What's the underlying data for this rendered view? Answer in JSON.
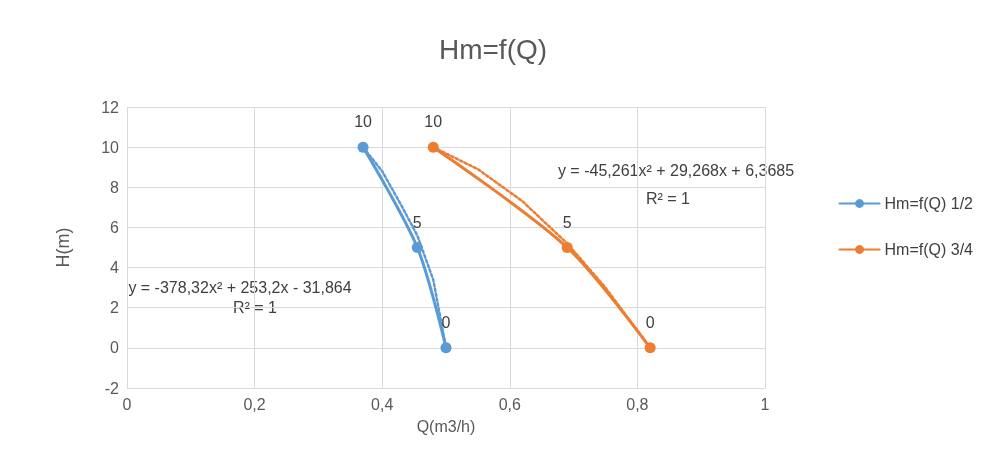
{
  "chart_data": {
    "type": "line",
    "title": "Hm=f(Q)",
    "xlabel": "Q(m3/h)",
    "ylabel": "H(m)",
    "series": [
      {
        "name": "Hm=f(Q) 1/2",
        "color": "#5b9bd5",
        "x": [
          0.37,
          0.455,
          0.5
        ],
        "values": [
          10,
          5,
          0
        ],
        "value_labels": [
          "10",
          "5",
          "0"
        ]
      },
      {
        "name": "Hm=f(Q) 3/4",
        "color": "#ed7d31",
        "x": [
          0.48,
          0.69,
          0.82
        ],
        "values": [
          10,
          5,
          0
        ],
        "value_labels": [
          "10",
          "5",
          "0"
        ]
      },
      {
        "type": "line",
        "color": "#5b9bd5",
        "x": [
          0.37,
          0.4,
          0.43,
          0.455,
          0.48,
          0.5
        ],
        "values": [
          10,
          8.8,
          7.1,
          5.6,
          3.4,
          0
        ],
        "line_style": "dotted",
        "marker": "none"
      },
      {
        "type": "line",
        "color": "#ed7d31",
        "x": [
          0.48,
          0.55,
          0.62,
          0.69,
          0.75,
          0.82
        ],
        "values": [
          10,
          8.9,
          7.3,
          5.2,
          3.0,
          0
        ],
        "line_style": "dotted",
        "marker": "none"
      }
    ],
    "marker": "circle",
    "line_style": "solid",
    "xlim": [
      0,
      1
    ],
    "xticks": [
      {
        "value": 0,
        "label": "0"
      },
      {
        "value": 0.2,
        "label": "0,2"
      },
      {
        "value": 0.4,
        "label": "0,4"
      },
      {
        "value": 0.6,
        "label": "0,6"
      },
      {
        "value": 0.8,
        "label": "0,8"
      },
      {
        "value": 1,
        "label": "1"
      }
    ],
    "ylim": [
      -2,
      12
    ],
    "yticks": [
      -2,
      0,
      2,
      4,
      6,
      8,
      10,
      12
    ],
    "grid": true,
    "legend": "right",
    "annotations": [
      "y = -378,32x² + 253,2x - 31,864",
      "R² = 1",
      "y = -45,261x² + 29,268x + 6,3685",
      "R² = 1"
    ]
  }
}
